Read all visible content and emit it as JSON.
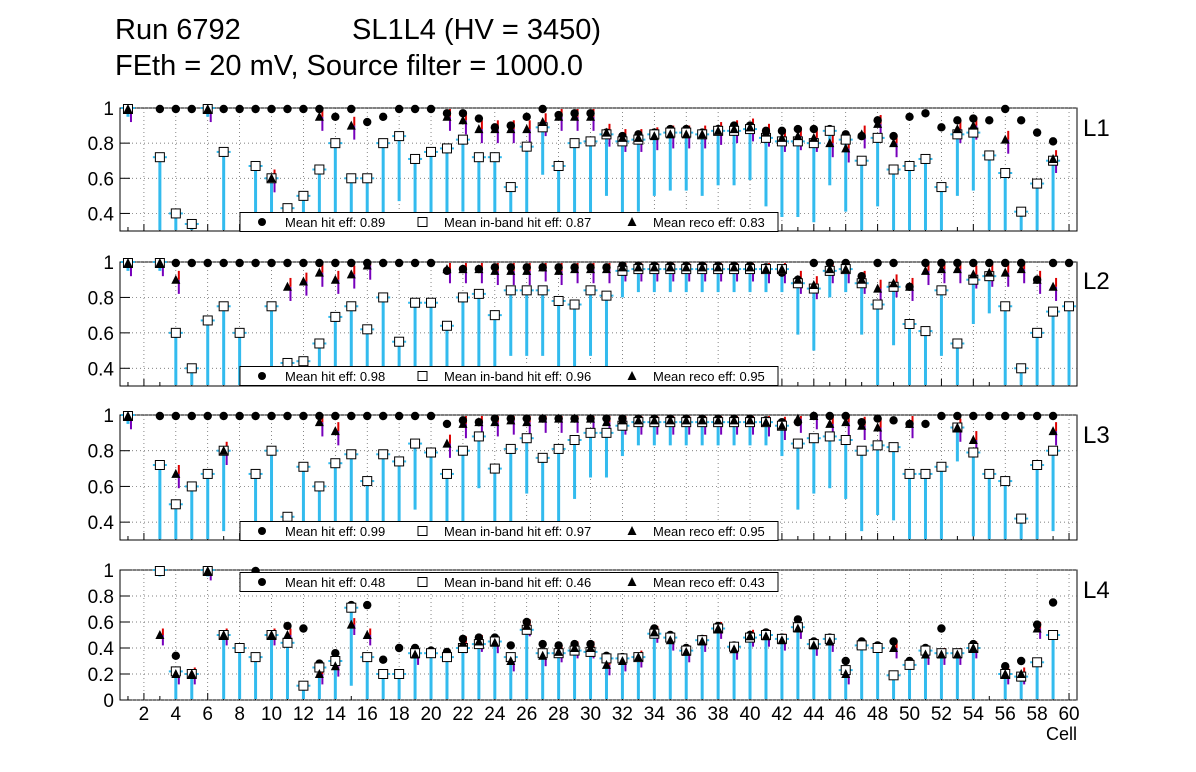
{
  "header": {
    "run": "Run 6792",
    "layer_info": "SL1L4 (HV = 3450)",
    "conditions": "FEth = 20 mV, Source filter = 1000.0"
  },
  "xaxis_label": "Cell",
  "xtick_labels": [
    "2",
    "4",
    "6",
    "8",
    "10",
    "12",
    "14",
    "16",
    "18",
    "20",
    "22",
    "24",
    "26",
    "28",
    "30",
    "32",
    "34",
    "36",
    "38",
    "40",
    "42",
    "44",
    "46",
    "48",
    "50",
    "52",
    "54",
    "56",
    "58",
    "60"
  ],
  "legend_labels": {
    "hit": "Mean hit  eff:",
    "inband": "Mean in-band hit eff:",
    "reco": "Mean reco eff:"
  },
  "colors": {
    "error_cyan": "#33bbee",
    "error_red": "#dd0000",
    "error_purple": "#7700bb",
    "axis": "#000000",
    "grid": "#555555"
  },
  "chart_data": [
    {
      "type": "scatter",
      "panel": "L1",
      "ylim": [
        0.3,
        1.0
      ],
      "yticks": [
        "0.4",
        "0.6",
        "0.8",
        "1"
      ],
      "x": [
        1,
        2,
        3,
        4,
        5,
        6,
        7,
        8,
        9,
        10,
        11,
        12,
        13,
        14,
        15,
        16,
        17,
        18,
        19,
        20,
        21,
        22,
        23,
        24,
        25,
        26,
        27,
        28,
        29,
        30,
        31,
        32,
        33,
        34,
        35,
        36,
        37,
        38,
        39,
        40,
        41,
        42,
        43,
        44,
        45,
        46,
        47,
        48,
        49,
        50,
        51,
        52,
        53,
        54,
        55,
        56,
        57,
        58,
        59,
        60
      ],
      "legend": {
        "mean_hit_eff": "0.89",
        "mean_inband_hit_eff": "0.87",
        "mean_reco_eff": "0.83"
      },
      "series": [
        {
          "name": "Mean hit eff",
          "marker": "circle",
          "values": [
            1,
            null,
            1,
            1,
            1,
            1,
            1,
            1,
            1,
            1,
            1,
            1,
            1,
            0.95,
            1,
            0.92,
            0.95,
            1,
            1,
            1,
            0.97,
            0.97,
            0.94,
            0.89,
            0.9,
            0.95,
            1,
            0.96,
            0.97,
            0.97,
            0.86,
            0.84,
            0.85,
            0.86,
            0.88,
            0.88,
            0.86,
            0.88,
            0.9,
            0.9,
            0.87,
            0.87,
            0.88,
            0.88,
            0.88,
            0.85,
            0.84,
            0.93,
            0.84,
            0.95,
            0.97,
            0.89,
            0.93,
            0.94,
            0.93,
            1,
            0.93,
            0.86,
            0.81,
            null
          ]
        },
        {
          "name": "Mean in-band hit eff",
          "marker": "square",
          "values": [
            1,
            null,
            0.72,
            0.4,
            0.34,
            1,
            0.75,
            null,
            0.67,
            0.6,
            0.43,
            0.5,
            0.65,
            0.8,
            0.6,
            0.6,
            0.8,
            0.84,
            0.71,
            0.75,
            0.77,
            0.82,
            0.72,
            0.72,
            0.55,
            0.78,
            0.89,
            0.67,
            0.8,
            0.81,
            0.85,
            0.81,
            0.82,
            0.85,
            0.86,
            0.86,
            0.85,
            0.87,
            0.87,
            0.88,
            0.83,
            0.81,
            0.81,
            0.8,
            0.87,
            0.82,
            0.7,
            0.83,
            0.65,
            0.67,
            0.71,
            0.55,
            0.85,
            0.86,
            0.73,
            0.63,
            0.41,
            0.57,
            0.7,
            null
          ]
        },
        {
          "name": "Mean reco eff",
          "marker": "triangle",
          "values": [
            1,
            null,
            null,
            null,
            null,
            1,
            null,
            null,
            null,
            0.6,
            null,
            null,
            0.95,
            null,
            0.9,
            null,
            null,
            null,
            null,
            null,
            0.95,
            0.93,
            0.88,
            0.88,
            0.88,
            0.88,
            0.92,
            0.95,
            0.95,
            0.95,
            0.86,
            0.83,
            0.83,
            0.84,
            0.85,
            0.85,
            0.85,
            0.87,
            0.88,
            0.89,
            0.86,
            0.83,
            0.84,
            0.83,
            0.8,
            0.77,
            0.85,
            0.91,
            0.8,
            null,
            null,
            null,
            0.88,
            0.9,
            null,
            0.82,
            null,
            null,
            0.71,
            null
          ]
        }
      ]
    },
    {
      "type": "scatter",
      "panel": "L2",
      "ylim": [
        0.3,
        1.0
      ],
      "yticks": [
        "0.4",
        "0.6",
        "0.8",
        "1"
      ],
      "x": [
        1,
        2,
        3,
        4,
        5,
        6,
        7,
        8,
        9,
        10,
        11,
        12,
        13,
        14,
        15,
        16,
        17,
        18,
        19,
        20,
        21,
        22,
        23,
        24,
        25,
        26,
        27,
        28,
        29,
        30,
        31,
        32,
        33,
        34,
        35,
        36,
        37,
        38,
        39,
        40,
        41,
        42,
        43,
        44,
        45,
        46,
        47,
        48,
        49,
        50,
        51,
        52,
        53,
        54,
        55,
        56,
        57,
        58,
        59,
        60
      ],
      "legend": {
        "mean_hit_eff": "0.98",
        "mean_inband_hit_eff": "0.96",
        "mean_reco_eff": "0.95"
      },
      "series": [
        {
          "name": "Mean hit eff",
          "marker": "circle",
          "values": [
            1,
            null,
            1,
            1,
            1,
            1,
            1,
            1,
            1,
            1,
            1,
            1,
            1,
            1,
            1,
            1,
            1,
            1,
            1,
            1,
            0.95,
            0.96,
            0.96,
            0.97,
            0.97,
            0.97,
            0.97,
            0.97,
            0.97,
            0.97,
            0.97,
            0.98,
            0.98,
            0.98,
            0.98,
            0.98,
            0.98,
            0.98,
            0.98,
            0.98,
            0.97,
            0.94,
            0.9,
            1,
            1,
            1,
            0.92,
            1,
            1,
            0.86,
            1,
            1,
            1,
            1,
            1,
            1,
            1,
            0.9,
            1,
            1
          ]
        },
        {
          "name": "Mean in-band hit eff",
          "marker": "square",
          "values": [
            1,
            null,
            1,
            0.6,
            0.4,
            0.67,
            0.75,
            0.6,
            null,
            0.75,
            0.43,
            0.44,
            0.54,
            0.69,
            0.75,
            0.62,
            0.8,
            0.55,
            0.77,
            0.77,
            0.64,
            0.8,
            0.82,
            0.7,
            0.84,
            0.84,
            0.84,
            0.78,
            0.76,
            0.84,
            0.81,
            0.95,
            0.96,
            0.96,
            0.96,
            0.96,
            0.96,
            0.96,
            0.96,
            0.96,
            0.96,
            0.96,
            0.88,
            0.85,
            0.95,
            0.96,
            0.88,
            0.76,
            0.86,
            0.65,
            0.61,
            0.84,
            0.54,
            0.9,
            0.92,
            0.75,
            0.4,
            0.6,
            0.72,
            0.75
          ]
        },
        {
          "name": "Mean reco eff",
          "marker": "triangle",
          "values": [
            1,
            null,
            1,
            0.9,
            null,
            null,
            null,
            null,
            null,
            null,
            0.86,
            0.89,
            0.94,
            0.9,
            0.93,
            0.98,
            null,
            null,
            null,
            null,
            0.96,
            0.96,
            0.96,
            0.95,
            0.95,
            0.95,
            0.97,
            0.95,
            0.96,
            0.96,
            0.96,
            0.97,
            0.97,
            0.97,
            0.97,
            0.97,
            0.97,
            0.97,
            0.97,
            0.97,
            0.96,
            0.96,
            0.9,
            0.87,
            0.96,
            0.96,
            0.9,
            0.85,
            0.88,
            0.86,
            0.95,
            0.96,
            0.96,
            0.93,
            0.94,
            0.94,
            0.96,
            0.9,
            0.86,
            null
          ]
        }
      ]
    },
    {
      "type": "scatter",
      "panel": "L3",
      "ylim": [
        0.3,
        1.0
      ],
      "yticks": [
        "0.4",
        "0.6",
        "0.8",
        "1"
      ],
      "x": [
        1,
        2,
        3,
        4,
        5,
        6,
        7,
        8,
        9,
        10,
        11,
        12,
        13,
        14,
        15,
        16,
        17,
        18,
        19,
        20,
        21,
        22,
        23,
        24,
        25,
        26,
        27,
        28,
        29,
        30,
        31,
        32,
        33,
        34,
        35,
        36,
        37,
        38,
        39,
        40,
        41,
        42,
        43,
        44,
        45,
        46,
        47,
        48,
        49,
        50,
        51,
        52,
        53,
        54,
        55,
        56,
        57,
        58,
        59,
        60
      ],
      "legend": {
        "mean_hit_eff": "0.99",
        "mean_inband_hit_eff": "0.97",
        "mean_reco_eff": "0.95"
      },
      "series": [
        {
          "name": "Mean hit eff",
          "marker": "circle",
          "values": [
            1,
            null,
            1,
            1,
            1,
            1,
            1,
            1,
            1,
            1,
            1,
            1,
            1,
            1,
            1,
            1,
            1,
            1,
            1,
            1,
            0.95,
            0.97,
            0.96,
            0.98,
            0.98,
            0.98,
            0.98,
            0.98,
            0.98,
            0.98,
            0.98,
            0.98,
            0.98,
            0.98,
            0.98,
            0.98,
            0.98,
            0.98,
            0.98,
            0.98,
            0.97,
            0.96,
            0.96,
            1,
            1,
            1,
            0.96,
            0.98,
            0.97,
            0.95,
            0.95,
            1,
            1,
            1,
            1,
            1,
            1,
            1,
            1,
            null
          ]
        },
        {
          "name": "Mean in-band hit eff",
          "marker": "square",
          "values": [
            1,
            null,
            0.72,
            0.5,
            0.6,
            0.67,
            0.8,
            null,
            0.67,
            0.8,
            0.43,
            0.71,
            0.6,
            0.73,
            0.78,
            0.63,
            0.78,
            0.74,
            0.84,
            0.79,
            0.67,
            0.8,
            0.88,
            0.7,
            0.81,
            0.87,
            0.76,
            0.81,
            0.86,
            0.9,
            0.9,
            0.94,
            0.96,
            0.96,
            0.96,
            0.96,
            0.96,
            0.96,
            0.96,
            0.96,
            0.96,
            0.94,
            0.84,
            0.87,
            0.88,
            0.86,
            0.8,
            0.83,
            0.82,
            0.67,
            0.67,
            0.71,
            0.93,
            0.79,
            0.67,
            0.63,
            0.42,
            0.72,
            0.8,
            null
          ]
        },
        {
          "name": "Mean reco eff",
          "marker": "triangle",
          "values": [
            1,
            null,
            null,
            0.67,
            null,
            null,
            0.8,
            null,
            null,
            null,
            null,
            null,
            0.96,
            0.91,
            null,
            null,
            null,
            null,
            null,
            null,
            0.84,
            0.95,
            0.96,
            0.96,
            0.97,
            0.96,
            0.98,
            0.98,
            0.98,
            0.98,
            0.96,
            0.97,
            0.97,
            0.97,
            0.97,
            0.97,
            0.97,
            0.97,
            0.97,
            0.97,
            0.96,
            0.94,
            0.98,
            1,
            0.95,
            0.96,
            0.94,
            0.93,
            null,
            0.95,
            null,
            null,
            0.93,
            0.86,
            null,
            null,
            null,
            null,
            0.91,
            null
          ]
        }
      ]
    },
    {
      "type": "scatter",
      "panel": "L4",
      "ylim": [
        0.0,
        1.0
      ],
      "yticks": [
        "0",
        "0.2",
        "0.4",
        "0.6",
        "0.8",
        "1"
      ],
      "x": [
        1,
        2,
        3,
        4,
        5,
        6,
        7,
        8,
        9,
        10,
        11,
        12,
        13,
        14,
        15,
        16,
        17,
        18,
        19,
        20,
        21,
        22,
        23,
        24,
        25,
        26,
        27,
        28,
        29,
        30,
        31,
        32,
        33,
        34,
        35,
        36,
        37,
        38,
        39,
        40,
        41,
        42,
        43,
        44,
        45,
        46,
        47,
        48,
        49,
        50,
        51,
        52,
        53,
        54,
        55,
        56,
        57,
        58,
        59,
        60
      ],
      "legend": {
        "mean_hit_eff": "0.48",
        "mean_inband_hit_eff": "0.46",
        "mean_reco_eff": "0.43"
      },
      "series": [
        {
          "name": "Mean hit eff",
          "marker": "circle",
          "values": [
            null,
            null,
            1,
            0.34,
            0.2,
            1,
            0.5,
            0.4,
            1,
            0.5,
            0.57,
            0.55,
            0.28,
            0.36,
            0.73,
            0.73,
            0.31,
            0.4,
            0.4,
            0.38,
            0.37,
            0.47,
            0.48,
            0.48,
            0.42,
            0.6,
            0.43,
            0.42,
            0.43,
            0.43,
            0.34,
            0.33,
            0.33,
            0.55,
            0.5,
            0.4,
            0.47,
            0.57,
            0.42,
            0.5,
            0.52,
            0.48,
            0.62,
            0.45,
            0.48,
            0.3,
            0.45,
            0.42,
            0.45,
            0.3,
            0.4,
            0.55,
            0.36,
            0.43,
            null,
            0.26,
            0.3,
            0.58,
            0.75,
            null
          ]
        },
        {
          "name": "Mean in-band hit eff",
          "marker": "square",
          "values": [
            null,
            null,
            1,
            0.22,
            0.2,
            1,
            0.5,
            0.4,
            0.33,
            0.5,
            0.44,
            0.11,
            0.25,
            0.3,
            0.71,
            0.33,
            0.2,
            0.2,
            0.36,
            0.36,
            0.33,
            0.4,
            0.43,
            0.45,
            0.33,
            0.54,
            0.36,
            0.36,
            0.38,
            0.37,
            0.32,
            0.32,
            0.33,
            0.51,
            0.48,
            0.38,
            0.46,
            0.55,
            0.41,
            0.48,
            0.5,
            0.47,
            0.56,
            0.43,
            0.47,
            0.23,
            0.42,
            0.4,
            0.19,
            0.27,
            0.38,
            0.36,
            0.36,
            0.4,
            null,
            0.2,
            0.18,
            0.29,
            0.5,
            null
          ]
        },
        {
          "name": "Mean reco eff",
          "marker": "triangle",
          "values": [
            null,
            null,
            0.5,
            0.2,
            0.2,
            1,
            0.5,
            null,
            null,
            0.5,
            0.5,
            null,
            0.2,
            0.26,
            0.58,
            0.5,
            null,
            null,
            0.35,
            null,
            null,
            0.44,
            0.45,
            0.44,
            0.3,
            0.57,
            0.34,
            0.37,
            0.4,
            0.4,
            0.27,
            0.3,
            0.33,
            0.52,
            0.46,
            0.37,
            0.45,
            0.55,
            0.39,
            0.49,
            0.49,
            0.46,
            0.55,
            0.42,
            0.45,
            0.2,
            null,
            null,
            0.4,
            null,
            0.35,
            0.35,
            0.35,
            0.4,
            null,
            0.2,
            0.2,
            0.55,
            null,
            null
          ]
        }
      ]
    }
  ]
}
